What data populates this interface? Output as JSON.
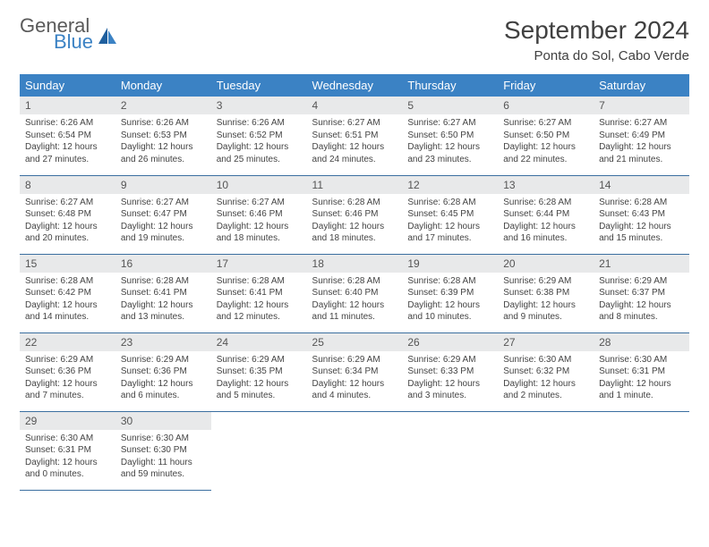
{
  "brand": {
    "line1": "General",
    "line2": "Blue"
  },
  "title": "September 2024",
  "location": "Ponta do Sol, Cabo Verde",
  "colors": {
    "header_bg": "#3b82c4",
    "header_fg": "#ffffff",
    "daynum_bg": "#e8e9ea",
    "row_border": "#3b6fa0",
    "text": "#404040"
  },
  "weekdays": [
    "Sunday",
    "Monday",
    "Tuesday",
    "Wednesday",
    "Thursday",
    "Friday",
    "Saturday"
  ],
  "layout": {
    "leading_blanks": 0,
    "trailing_blanks": 5
  },
  "days": [
    {
      "n": 1,
      "sr": "6:26 AM",
      "ss": "6:54 PM",
      "dl": "12 hours and 27 minutes."
    },
    {
      "n": 2,
      "sr": "6:26 AM",
      "ss": "6:53 PM",
      "dl": "12 hours and 26 minutes."
    },
    {
      "n": 3,
      "sr": "6:26 AM",
      "ss": "6:52 PM",
      "dl": "12 hours and 25 minutes."
    },
    {
      "n": 4,
      "sr": "6:27 AM",
      "ss": "6:51 PM",
      "dl": "12 hours and 24 minutes."
    },
    {
      "n": 5,
      "sr": "6:27 AM",
      "ss": "6:50 PM",
      "dl": "12 hours and 23 minutes."
    },
    {
      "n": 6,
      "sr": "6:27 AM",
      "ss": "6:50 PM",
      "dl": "12 hours and 22 minutes."
    },
    {
      "n": 7,
      "sr": "6:27 AM",
      "ss": "6:49 PM",
      "dl": "12 hours and 21 minutes."
    },
    {
      "n": 8,
      "sr": "6:27 AM",
      "ss": "6:48 PM",
      "dl": "12 hours and 20 minutes."
    },
    {
      "n": 9,
      "sr": "6:27 AM",
      "ss": "6:47 PM",
      "dl": "12 hours and 19 minutes."
    },
    {
      "n": 10,
      "sr": "6:27 AM",
      "ss": "6:46 PM",
      "dl": "12 hours and 18 minutes."
    },
    {
      "n": 11,
      "sr": "6:28 AM",
      "ss": "6:46 PM",
      "dl": "12 hours and 18 minutes."
    },
    {
      "n": 12,
      "sr": "6:28 AM",
      "ss": "6:45 PM",
      "dl": "12 hours and 17 minutes."
    },
    {
      "n": 13,
      "sr": "6:28 AM",
      "ss": "6:44 PM",
      "dl": "12 hours and 16 minutes."
    },
    {
      "n": 14,
      "sr": "6:28 AM",
      "ss": "6:43 PM",
      "dl": "12 hours and 15 minutes."
    },
    {
      "n": 15,
      "sr": "6:28 AM",
      "ss": "6:42 PM",
      "dl": "12 hours and 14 minutes."
    },
    {
      "n": 16,
      "sr": "6:28 AM",
      "ss": "6:41 PM",
      "dl": "12 hours and 13 minutes."
    },
    {
      "n": 17,
      "sr": "6:28 AM",
      "ss": "6:41 PM",
      "dl": "12 hours and 12 minutes."
    },
    {
      "n": 18,
      "sr": "6:28 AM",
      "ss": "6:40 PM",
      "dl": "12 hours and 11 minutes."
    },
    {
      "n": 19,
      "sr": "6:28 AM",
      "ss": "6:39 PM",
      "dl": "12 hours and 10 minutes."
    },
    {
      "n": 20,
      "sr": "6:29 AM",
      "ss": "6:38 PM",
      "dl": "12 hours and 9 minutes."
    },
    {
      "n": 21,
      "sr": "6:29 AM",
      "ss": "6:37 PM",
      "dl": "12 hours and 8 minutes."
    },
    {
      "n": 22,
      "sr": "6:29 AM",
      "ss": "6:36 PM",
      "dl": "12 hours and 7 minutes."
    },
    {
      "n": 23,
      "sr": "6:29 AM",
      "ss": "6:36 PM",
      "dl": "12 hours and 6 minutes."
    },
    {
      "n": 24,
      "sr": "6:29 AM",
      "ss": "6:35 PM",
      "dl": "12 hours and 5 minutes."
    },
    {
      "n": 25,
      "sr": "6:29 AM",
      "ss": "6:34 PM",
      "dl": "12 hours and 4 minutes."
    },
    {
      "n": 26,
      "sr": "6:29 AM",
      "ss": "6:33 PM",
      "dl": "12 hours and 3 minutes."
    },
    {
      "n": 27,
      "sr": "6:30 AM",
      "ss": "6:32 PM",
      "dl": "12 hours and 2 minutes."
    },
    {
      "n": 28,
      "sr": "6:30 AM",
      "ss": "6:31 PM",
      "dl": "12 hours and 1 minute."
    },
    {
      "n": 29,
      "sr": "6:30 AM",
      "ss": "6:31 PM",
      "dl": "12 hours and 0 minutes."
    },
    {
      "n": 30,
      "sr": "6:30 AM",
      "ss": "6:30 PM",
      "dl": "11 hours and 59 minutes."
    }
  ],
  "labels": {
    "sunrise": "Sunrise:",
    "sunset": "Sunset:",
    "daylight": "Daylight:"
  }
}
